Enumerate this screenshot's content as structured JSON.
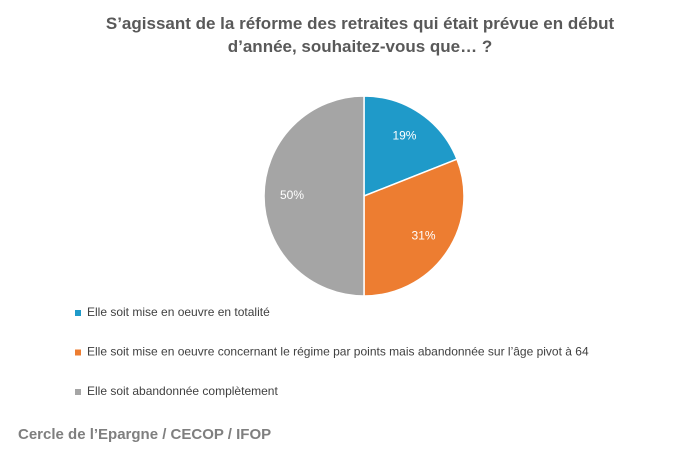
{
  "chart_data": {
    "type": "pie",
    "title": "S’agissant de la réforme des retraites qui était prévue en début d’année, souhaitez-vous que… ?",
    "categories": [
      "Elle soit mise en oeuvre en totalité",
      "Elle soit mise en oeuvre concernant le régime par points mais abandonnée sur l’âge pivot à 64",
      "Elle soit abandonnée complètement"
    ],
    "values": [
      19,
      31,
      50
    ],
    "value_labels": [
      "19%",
      "31%",
      "50%"
    ],
    "colors": [
      "#1f9ac9",
      "#ed7d31",
      "#a5a5a5"
    ],
    "source": "Cercle de l’Epargne / CECOP / IFOP"
  }
}
